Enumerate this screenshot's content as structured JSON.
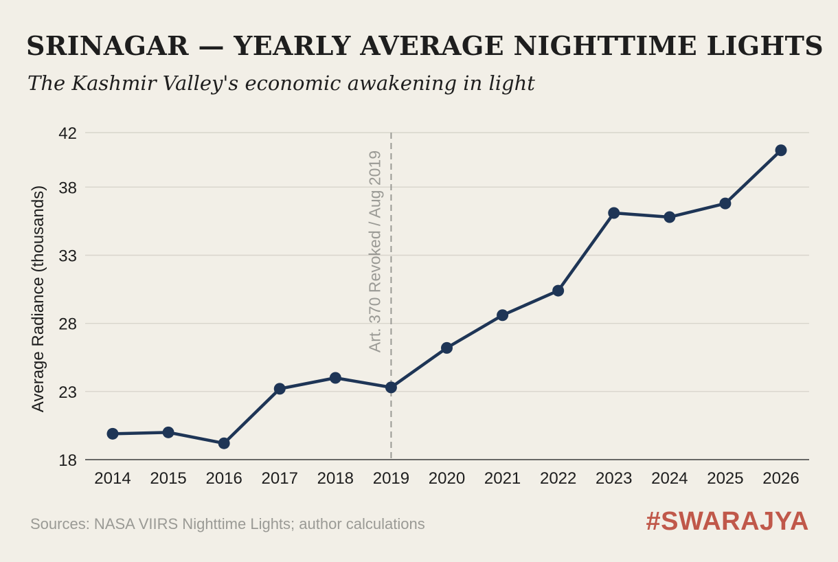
{
  "header": {
    "title": "SRINAGAR — YEARLY AVERAGE NIGHTTIME LIGHTS",
    "subtitle": "The Kashmir Valley's economic awakening in light"
  },
  "footer": {
    "source": "Sources: NASA VIIRS Nighttime Lights; author calculations",
    "brand": "#SWARAJYA"
  },
  "colors": {
    "background": "#f2efe7",
    "line": "#1e3556",
    "grid": "#d8d5cc",
    "annotation": "#9a9a95",
    "brand": "#c0584a"
  },
  "chart_data": {
    "type": "line",
    "title": "SRINAGAR — YEARLY AVERAGE NIGHTTIME LIGHTS",
    "subtitle": "The Kashmir Valley's economic awakening in light",
    "xlabel": "",
    "ylabel": "Average Radiance (thousands)",
    "categories": [
      "2014",
      "2015",
      "2016",
      "2017",
      "2018",
      "2019",
      "2020",
      "2021",
      "2022",
      "2023",
      "2024",
      "2025",
      "2026"
    ],
    "series": [
      {
        "values": [
          19.9,
          20.0,
          19.2,
          23.2,
          24.0,
          23.3,
          26.2,
          28.6,
          30.4,
          36.1,
          35.8,
          36.8,
          40.7
        ]
      }
    ],
    "ylim": [
      18,
      42
    ],
    "yticks": [
      18,
      23,
      28,
      33,
      38,
      42
    ],
    "grid": true,
    "legend": "none",
    "annotations": [
      {
        "x": "2019",
        "type": "vertical-dashed-line",
        "label": "Art. 370 Revoked / Aug 2019"
      }
    ]
  }
}
